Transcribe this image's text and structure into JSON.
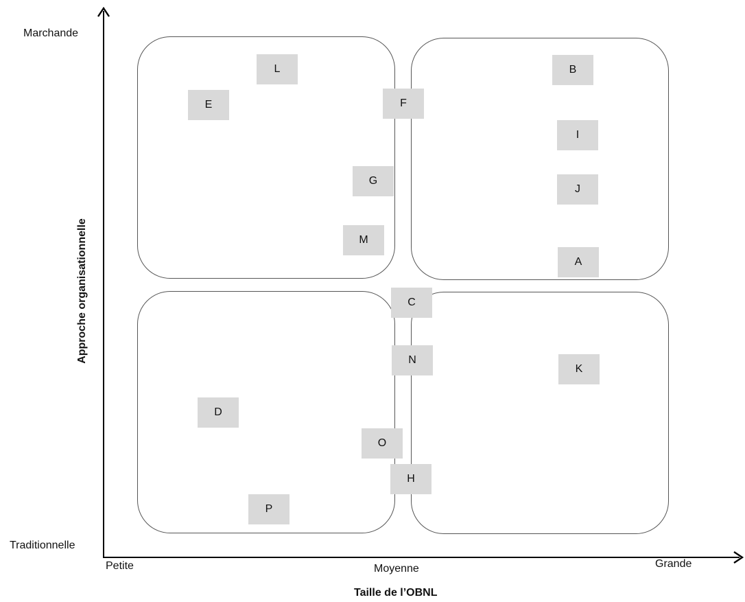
{
  "axes": {
    "y_title": "Approche organisationnelle",
    "y_top": "Marchande",
    "y_bottom": "Traditionnelle",
    "x_title": "Taille de l’OBNL",
    "x_left": "Petite",
    "x_mid": "Moyenne",
    "x_right": "Grande"
  },
  "organizations": [
    {
      "id": "L"
    },
    {
      "id": "E"
    },
    {
      "id": "F"
    },
    {
      "id": "B"
    },
    {
      "id": "I"
    },
    {
      "id": "G"
    },
    {
      "id": "J"
    },
    {
      "id": "M"
    },
    {
      "id": "A"
    },
    {
      "id": "C"
    },
    {
      "id": "N"
    },
    {
      "id": "K"
    },
    {
      "id": "D"
    },
    {
      "id": "O"
    },
    {
      "id": "H"
    },
    {
      "id": "P"
    }
  ]
}
